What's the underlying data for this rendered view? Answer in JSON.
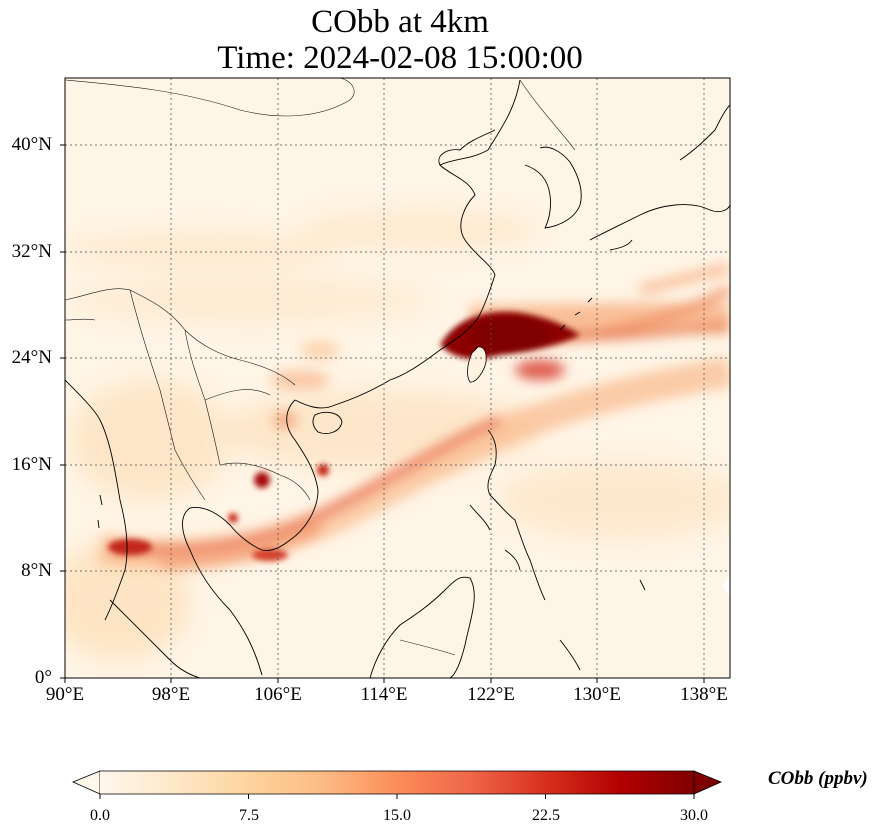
{
  "title_line1": "CObb at 4km",
  "title_line2": "Time: 2024-02-08 15:00:00",
  "lat_labels": [
    "40°N",
    "32°N",
    "24°N",
    "16°N",
    "8°N",
    "0°"
  ],
  "lon_labels": [
    "90°E",
    "98°E",
    "106°E",
    "114°E",
    "122°E",
    "130°E",
    "138°E"
  ],
  "colorbar": {
    "label": "CObb (ppbv)",
    "ticks": [
      "0.0",
      "7.5",
      "15.0",
      "22.5",
      "30.0"
    ],
    "min": 0,
    "max": 30,
    "colormap": "OrRd",
    "extend": "both"
  },
  "map": {
    "lon_range": [
      90,
      140
    ],
    "lat_range": [
      0,
      45
    ],
    "gridlines": "dotted",
    "features": [
      "coastlines",
      "country borders"
    ]
  },
  "colors": {
    "low": "#fff7ec",
    "mid": "#fdbb84",
    "high": "#7f0000"
  }
}
